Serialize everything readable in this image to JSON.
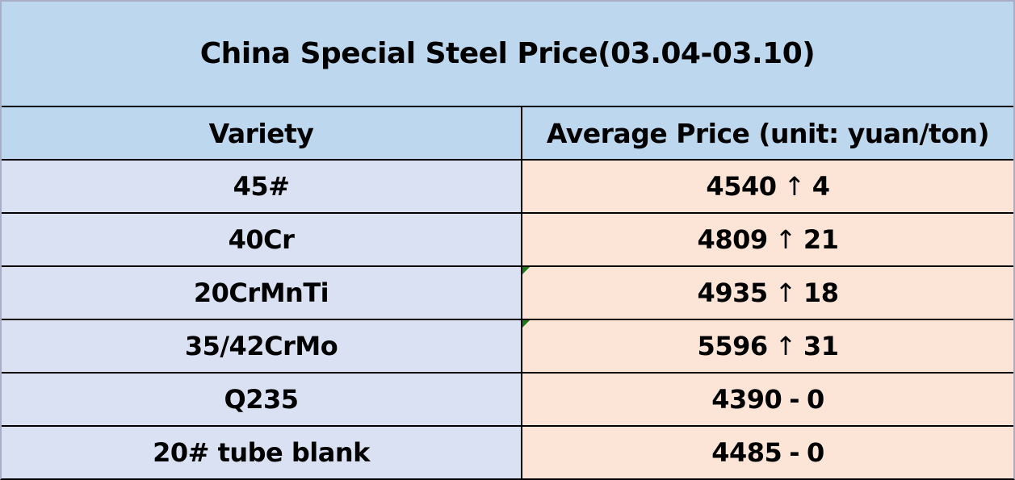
{
  "table": {
    "title": "China Special Steel Price(03.04-03.10)",
    "columns": {
      "variety": "Variety",
      "price": "Average Price (unit: yuan/ton)"
    },
    "rows": [
      {
        "variety": "45#",
        "price": "4540",
        "symbol": "↑",
        "change": "4",
        "flagged": false
      },
      {
        "variety": "40Cr",
        "price": "4809",
        "symbol": "↑",
        "change": "21",
        "flagged": false
      },
      {
        "variety": "20CrMnTi",
        "price": "4935",
        "symbol": "↑",
        "change": "18",
        "flagged": true
      },
      {
        "variety": "35/42CrMo",
        "price": "5596",
        "symbol": "↑",
        "change": "31",
        "flagged": true
      },
      {
        "variety": "Q235",
        "price": "4390",
        "symbol": "-",
        "change": "0",
        "flagged": false
      },
      {
        "variety": "20# tube blank",
        "price": "4485",
        "symbol": "-",
        "change": "0",
        "flagged": false
      }
    ]
  },
  "colors": {
    "title_header_bg": "#bdd7ee",
    "variety_cell_bg": "#d9e1f2",
    "price_cell_bg": "#fce4d6",
    "grid_line": "#000000",
    "outer_border": "#a7aec6",
    "flag_triangle": "#1b7a1b",
    "text": "#000000"
  },
  "chart_data": {
    "type": "table",
    "title": "China Special Steel Price(03.04-03.10)",
    "columns": [
      "Variety",
      "Average Price (unit: yuan/ton)"
    ],
    "rows": [
      [
        "45#",
        "4540 ↑ 4"
      ],
      [
        "40Cr",
        "4809 ↑ 21"
      ],
      [
        "20CrMnTi",
        "4935 ↑ 18"
      ],
      [
        "35/42CrMo",
        "5596 ↑ 31"
      ],
      [
        "Q235",
        "4390 - 0"
      ],
      [
        "20# tube blank",
        "4485 - 0"
      ]
    ],
    "categories": [
      "45#",
      "40Cr",
      "20CrMnTi",
      "35/42CrMo",
      "Q235",
      "20# tube blank"
    ],
    "series": [
      {
        "name": "average_price_yuan_per_ton",
        "values": [
          4540,
          4809,
          4935,
          5596,
          4390,
          4485
        ]
      },
      {
        "name": "weekly_change",
        "values": [
          4,
          21,
          18,
          31,
          0,
          0
        ]
      }
    ]
  }
}
